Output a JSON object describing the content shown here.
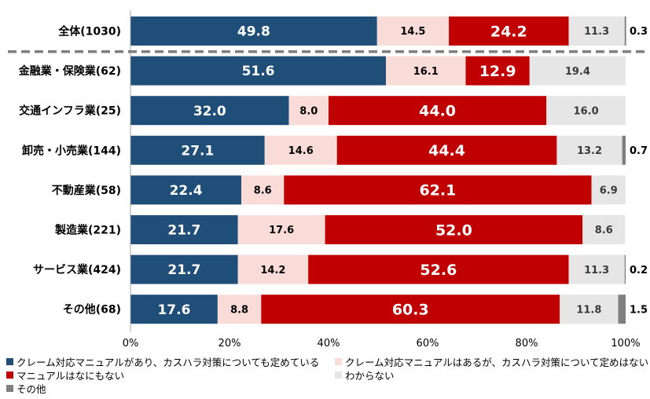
{
  "chart_data": {
    "type": "bar",
    "orientation": "horizontal",
    "stacked": "percent",
    "categories": [
      "全体(1030)",
      "金融業・保険業(62)",
      "交通インフラ業(25)",
      "卸売・小売業(144)",
      "不動産業(58)",
      "製造業(221)",
      "サービス業(424)",
      "その他(68)"
    ],
    "series": [
      {
        "name": "クレーム対応マニュアルがあり、カスハラ対策についても定めている",
        "color": "#1f4e79",
        "values": [
          49.8,
          51.6,
          32.0,
          27.1,
          22.4,
          21.7,
          21.7,
          17.6
        ]
      },
      {
        "name": "クレーム対応マニュアルはあるが、カスハラ対策について定めはない",
        "color": "#f9dcd7",
        "values": [
          14.5,
          16.1,
          8.0,
          14.6,
          8.6,
          17.6,
          14.2,
          8.8
        ]
      },
      {
        "name": "マニュアルはなにもない",
        "color": "#c00000",
        "values": [
          24.2,
          12.9,
          44.0,
          44.4,
          62.1,
          52.0,
          52.6,
          60.3
        ]
      },
      {
        "name": "わからない",
        "color": "#e6e6e6",
        "values": [
          11.3,
          19.4,
          16.0,
          13.2,
          6.9,
          8.6,
          11.3,
          11.8
        ]
      },
      {
        "name": "その他",
        "color": "#7f7f7f",
        "values": [
          0.3,
          0.0,
          0.0,
          0.7,
          0.0,
          0.0,
          0.2,
          1.5
        ]
      }
    ],
    "value_labels": [
      [
        "49.8",
        "51.6",
        "32.0",
        "27.1",
        "22.4",
        "21.7",
        "21.7",
        "17.6"
      ],
      [
        "14.5",
        "16.1",
        "8.0",
        "14.6",
        "8.6",
        "17.6",
        "14.2",
        "8.8"
      ],
      [
        "24.2",
        "12.9",
        "44.0",
        "44.4",
        "62.1",
        "52.0",
        "52.6",
        "60.3"
      ],
      [
        "11.3",
        "19.4",
        "16.0",
        "13.2",
        "6.9",
        "8.6",
        "11.3",
        "11.8"
      ],
      [
        "0.3",
        "",
        "",
        "0.7",
        "",
        "",
        "0.2",
        "1.5"
      ]
    ],
    "x_ticks": [
      "0%",
      "20%",
      "40%",
      "60%",
      "80%",
      "100%"
    ],
    "xlim": [
      0,
      100
    ],
    "grid": false,
    "legend_position": "bottom"
  }
}
